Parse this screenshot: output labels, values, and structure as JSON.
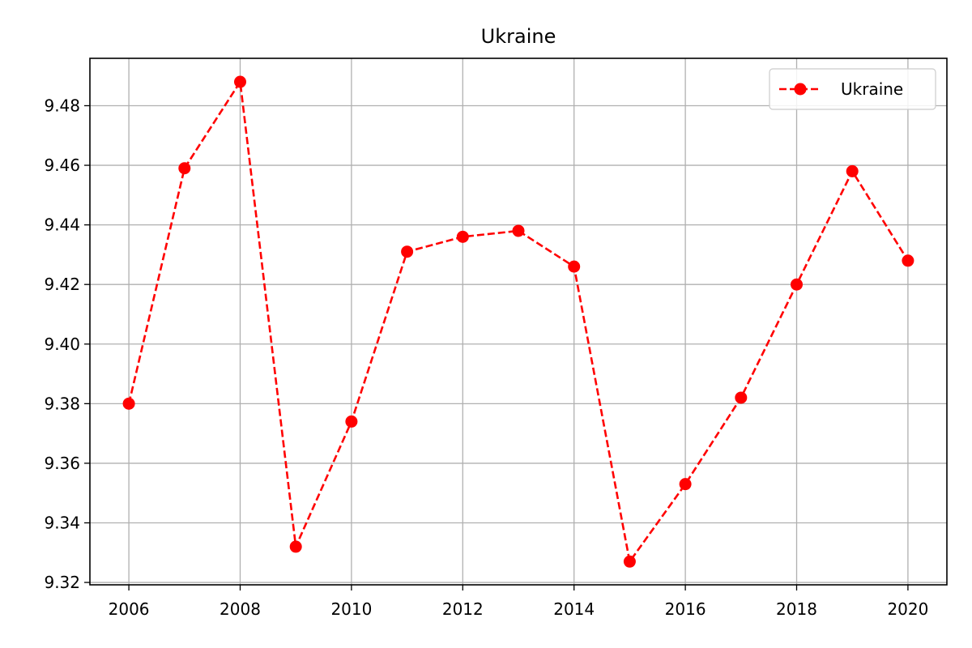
{
  "chart_data": {
    "type": "line",
    "title": "Ukraine",
    "xlabel": "",
    "ylabel": "",
    "x": [
      2006,
      2007,
      2008,
      2009,
      2010,
      2011,
      2012,
      2013,
      2014,
      2015,
      2016,
      2017,
      2018,
      2019,
      2020
    ],
    "series": [
      {
        "name": "Ukraine",
        "values": [
          9.38,
          9.459,
          9.488,
          9.332,
          9.374,
          9.431,
          9.436,
          9.438,
          9.426,
          9.327,
          9.353,
          9.382,
          9.42,
          9.458,
          9.428
        ],
        "color": "#ff0000",
        "line_style": "dashed",
        "marker": "circle"
      }
    ],
    "x_ticks": [
      "2006",
      "2008",
      "2010",
      "2012",
      "2014",
      "2016",
      "2018",
      "2020"
    ],
    "y_ticks": [
      "9.32",
      "9.34",
      "9.36",
      "9.38",
      "9.40",
      "9.42",
      "9.44",
      "9.46",
      "9.48"
    ],
    "xlim": [
      2005.3,
      2020.7
    ],
    "ylim": [
      9.3192,
      9.4959
    ],
    "grid": true,
    "legend_position": "top-right",
    "grid_color": "#b0b0b0"
  }
}
